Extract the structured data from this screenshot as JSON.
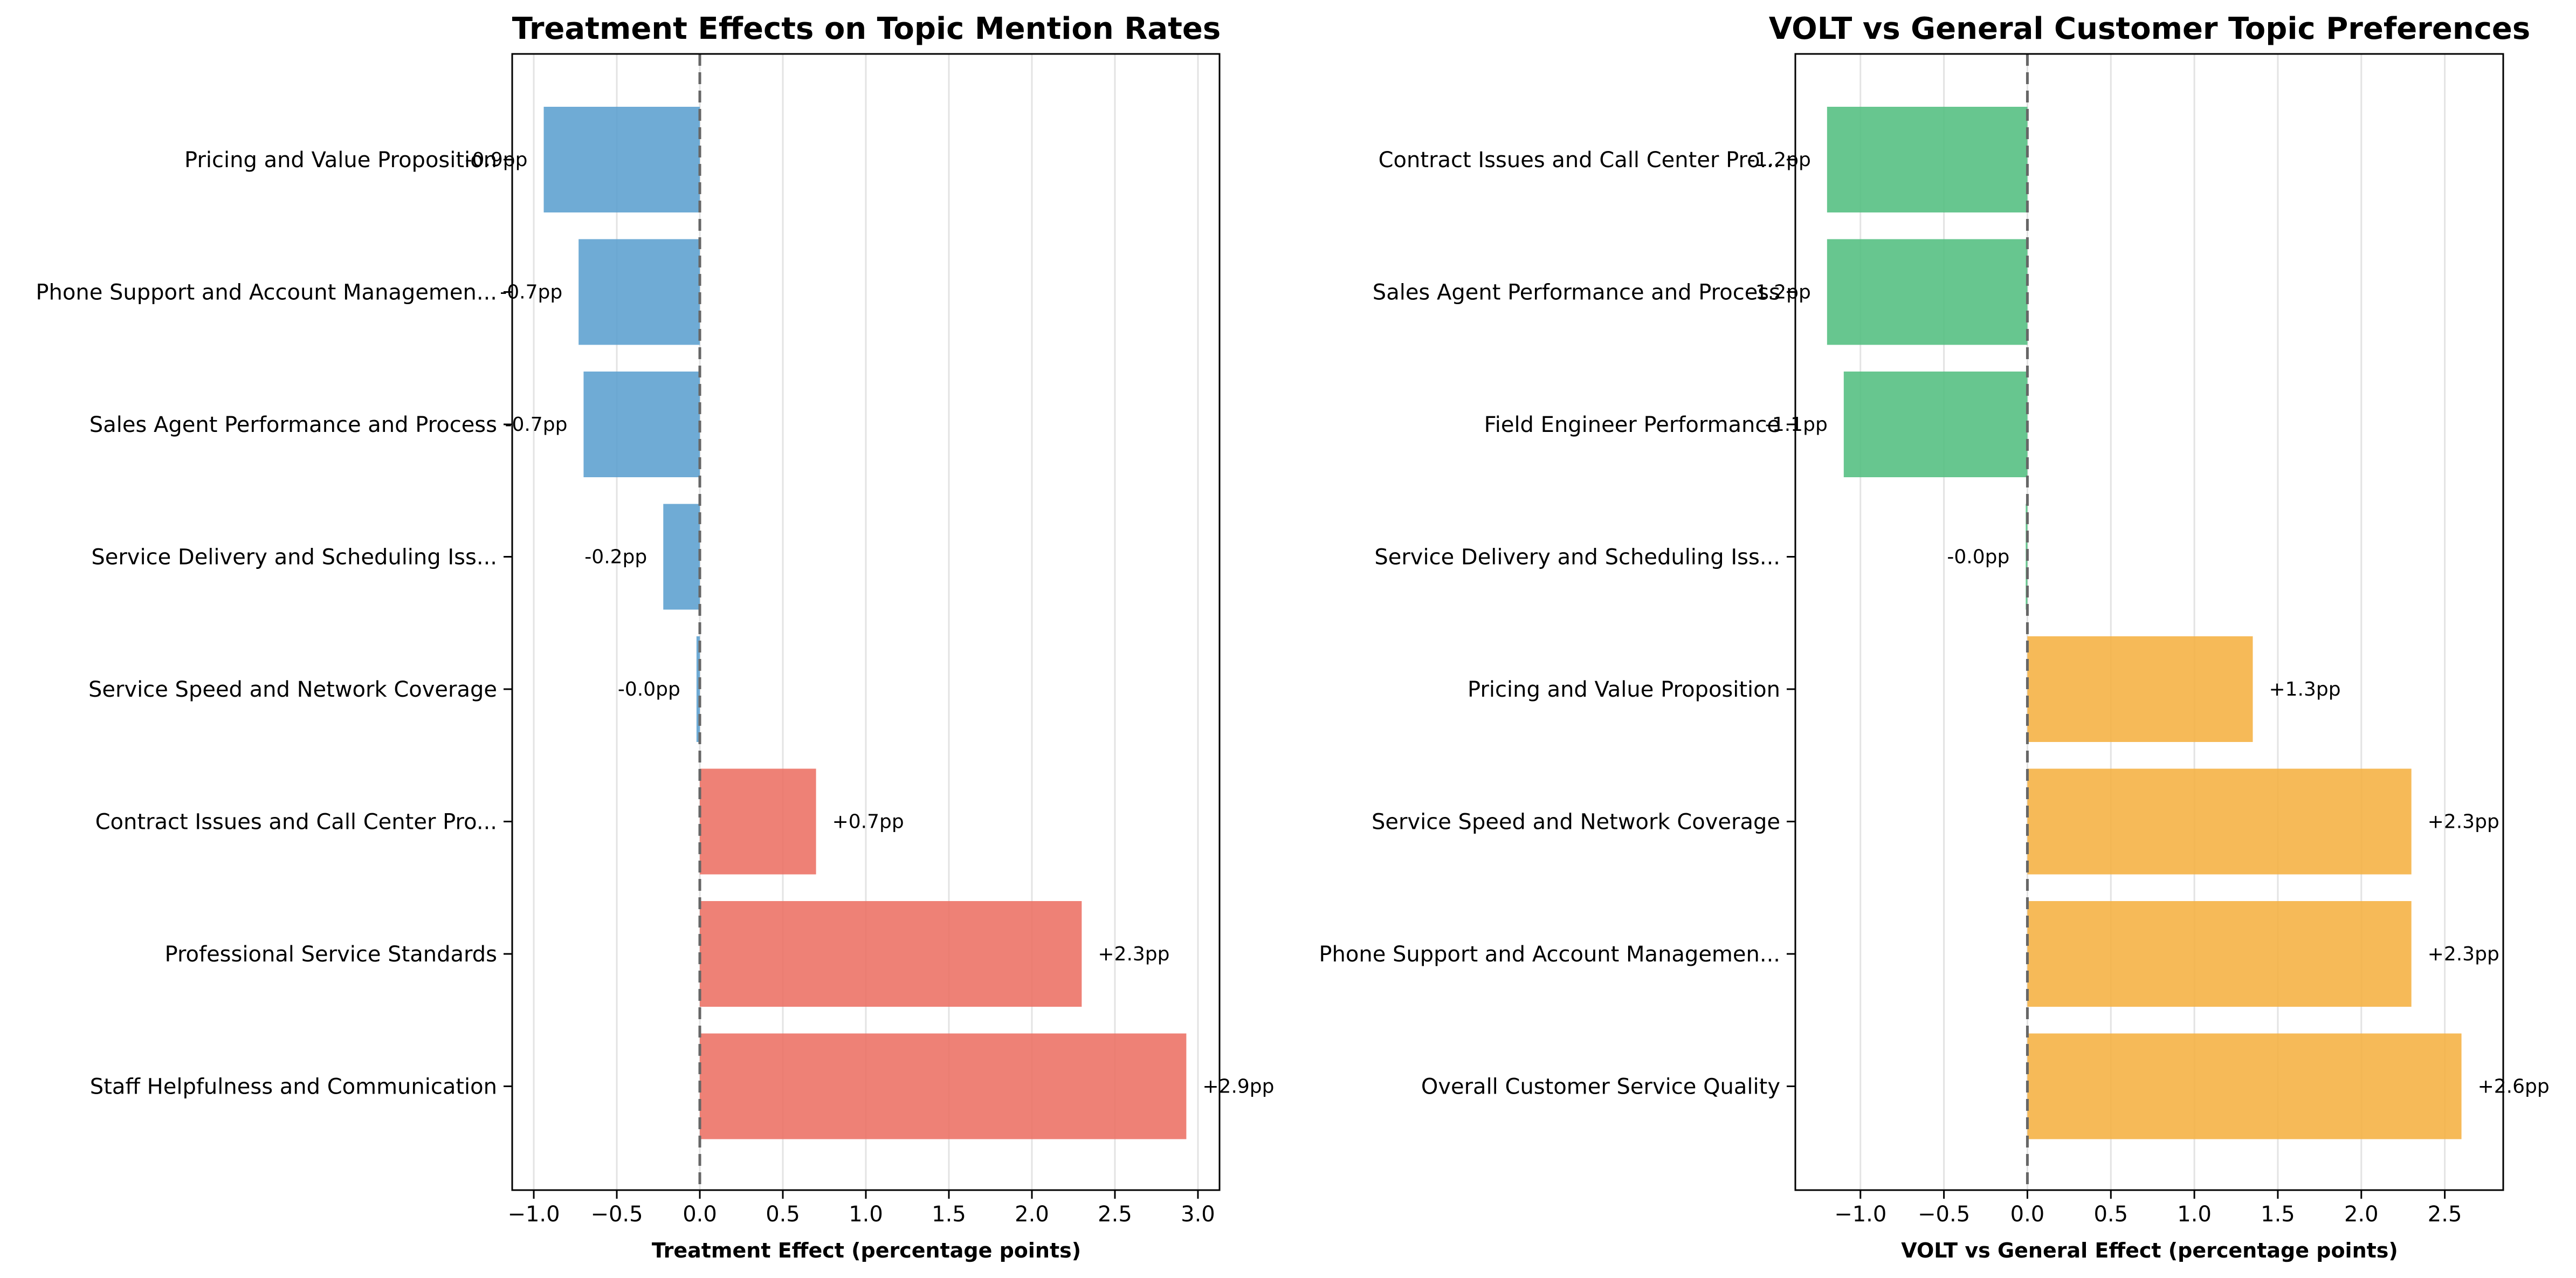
{
  "chart_data": [
    {
      "type": "bar",
      "orientation": "horizontal",
      "title": "Treatment Effects on Topic Mention Rates",
      "xlabel": "Treatment Effect (percentage points)",
      "ylabel": "",
      "xlim": [
        -1.13,
        3.13
      ],
      "xticks": [
        -1.0,
        -0.5,
        0.0,
        0.5,
        1.0,
        1.5,
        2.0,
        2.5,
        3.0
      ],
      "xtick_labels": [
        "−1.0",
        "−0.5",
        "0.0",
        "0.5",
        "1.0",
        "1.5",
        "2.0",
        "2.5",
        "3.0"
      ],
      "grid": "vertical",
      "reference_line": 0,
      "negative_color": "#5b9fcf",
      "positive_color": "#ec7063",
      "categories": [
        "Pricing and Value Proposition",
        "Phone Support and Account Managemen...",
        "Sales Agent Performance and Process",
        "Service Delivery and Scheduling Iss...",
        "Service Speed and Network Coverage",
        "Contract Issues and Call Center Pro...",
        "Professional Service Standards",
        "Staff Helpfulness and Communication"
      ],
      "values": [
        -0.94,
        -0.73,
        -0.7,
        -0.22,
        -0.02,
        0.7,
        2.3,
        2.93
      ],
      "data_labels": [
        "-0.9pp",
        "-0.7pp",
        "-0.7pp",
        "-0.2pp",
        "-0.0pp",
        "+0.7pp",
        "+2.3pp",
        "+2.9pp"
      ]
    },
    {
      "type": "bar",
      "orientation": "horizontal",
      "title": "VOLT vs General Customer Topic Preferences",
      "xlabel": "VOLT vs General Effect (percentage points)",
      "ylabel": "",
      "xlim": [
        -1.39,
        2.85
      ],
      "xticks": [
        -1.0,
        -0.5,
        0.0,
        0.5,
        1.0,
        1.5,
        2.0,
        2.5
      ],
      "xtick_labels": [
        "−1.0",
        "−0.5",
        "0.0",
        "0.5",
        "1.0",
        "1.5",
        "2.0",
        "2.5"
      ],
      "grid": "vertical",
      "reference_line": 0,
      "negative_color": "#52be80",
      "positive_color": "#f5b041",
      "categories": [
        "Contract Issues and Call Center Pro...",
        "Sales Agent Performance and Process",
        "Field Engineer Performance",
        "Service Delivery and Scheduling Iss...",
        "Pricing and Value Proposition",
        "Service Speed and Network Coverage",
        "Phone Support and Account Managemen...",
        "Overall Customer Service Quality"
      ],
      "values": [
        -1.2,
        -1.2,
        -1.1,
        -0.01,
        1.35,
        2.3,
        2.3,
        2.6
      ],
      "data_labels": [
        "-1.2pp",
        "-1.2pp",
        "-1.1pp",
        "-0.0pp",
        "+1.3pp",
        "+2.3pp",
        "+2.3pp",
        "+2.6pp"
      ]
    }
  ]
}
